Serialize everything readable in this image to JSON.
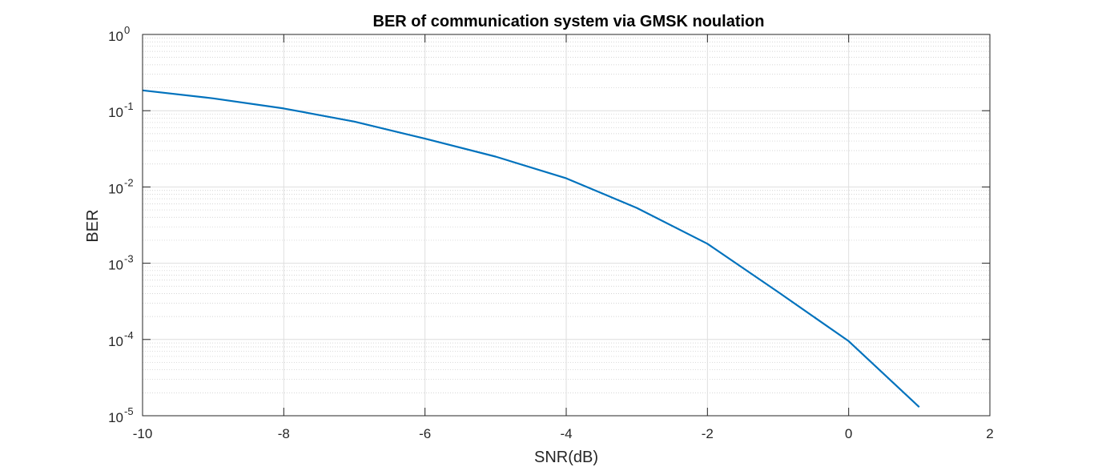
{
  "chart_data": {
    "type": "line",
    "title": "BER of communication system via GMSK noulation",
    "xlabel": "SNR(dB)",
    "ylabel": "BER",
    "xlim": [
      -10,
      2
    ],
    "ylim": [
      1e-05,
      1
    ],
    "yscale": "log",
    "grid": true,
    "minor_grid": true,
    "x_ticks": [
      -10,
      -8,
      -6,
      -4,
      -2,
      0,
      2
    ],
    "x_tick_labels": [
      "-10",
      "-8",
      "-6",
      "-4",
      "-2",
      "0",
      "2"
    ],
    "y_ticks": [
      {
        "base": "10",
        "exp": "0"
      },
      {
        "base": "10",
        "exp": "-1"
      },
      {
        "base": "10",
        "exp": "-2"
      },
      {
        "base": "10",
        "exp": "-3"
      },
      {
        "base": "10",
        "exp": "-4"
      },
      {
        "base": "10",
        "exp": "-5"
      }
    ],
    "series": [
      {
        "color": "#0072BD",
        "x": [
          -10,
          -9,
          -8,
          -7,
          -6,
          -5,
          -4,
          -3,
          -2,
          -1,
          0,
          1
        ],
        "y": [
          0.185,
          0.145,
          0.107,
          0.072,
          0.043,
          0.025,
          0.013,
          0.0053,
          0.0018,
          0.00042,
          9.5e-05,
          1.3e-05
        ]
      }
    ]
  }
}
